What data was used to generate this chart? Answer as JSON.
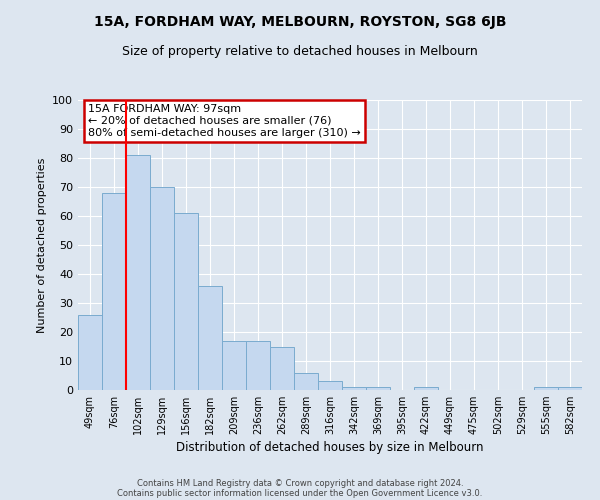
{
  "title": "15A, FORDHAM WAY, MELBOURN, ROYSTON, SG8 6JB",
  "subtitle": "Size of property relative to detached houses in Melbourn",
  "xlabel": "Distribution of detached houses by size in Melbourn",
  "ylabel": "Number of detached properties",
  "bar_color": "#c5d8ef",
  "bar_edge_color": "#7aabcf",
  "categories": [
    "49sqm",
    "76sqm",
    "102sqm",
    "129sqm",
    "156sqm",
    "182sqm",
    "209sqm",
    "236sqm",
    "262sqm",
    "289sqm",
    "316sqm",
    "342sqm",
    "369sqm",
    "395sqm",
    "422sqm",
    "449sqm",
    "475sqm",
    "502sqm",
    "529sqm",
    "555sqm",
    "582sqm"
  ],
  "values": [
    26,
    68,
    81,
    70,
    61,
    36,
    17,
    17,
    15,
    6,
    3,
    1,
    1,
    0,
    1,
    0,
    0,
    0,
    0,
    1,
    1
  ],
  "ylim": [
    0,
    100
  ],
  "yticks": [
    0,
    10,
    20,
    30,
    40,
    50,
    60,
    70,
    80,
    90,
    100
  ],
  "annotation_text": "15A FORDHAM WAY: 97sqm\n← 20% of detached houses are smaller (76)\n80% of semi-detached houses are larger (310) →",
  "vline_x_idx": 2,
  "annotation_box_color": "#ffffff",
  "annotation_border_color": "#cc0000",
  "footer_line1": "Contains HM Land Registry data © Crown copyright and database right 2024.",
  "footer_line2": "Contains public sector information licensed under the Open Government Licence v3.0.",
  "background_color": "#dde6f0",
  "grid_color": "#ffffff",
  "title_fontsize": 10,
  "subtitle_fontsize": 9
}
